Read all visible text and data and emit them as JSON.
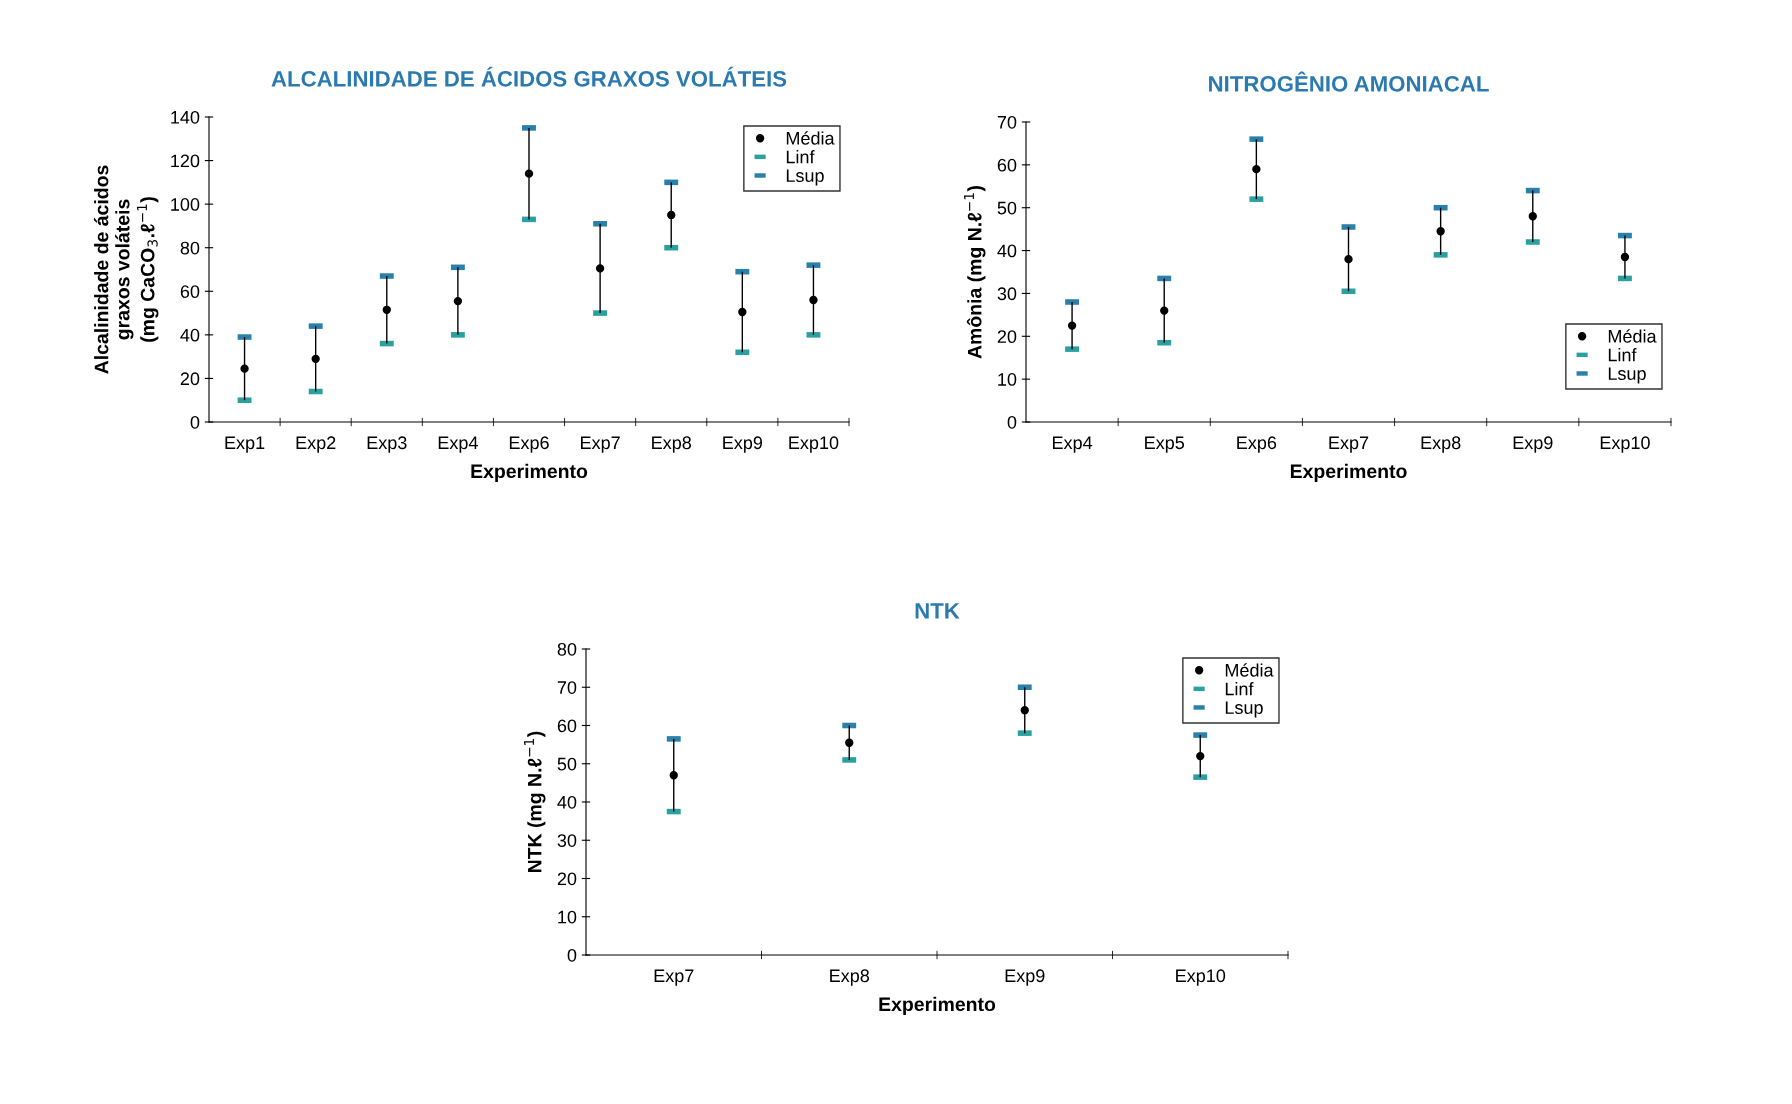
{
  "chart_data": [
    {
      "type": "scatter",
      "title": "ALCALINIDADE DE ÁCIDOS GRAXOS VOLÁTEIS",
      "xlabel": "Experimento",
      "ylabel": "Alcalinidade de ácidos\ngraxos voláteis\n(mg CaCO$_{3}$.ℓ$^{−1}$)",
      "categories": [
        "Exp1",
        "Exp2",
        "Exp3",
        "Exp4",
        "Exp6",
        "Exp7",
        "Exp8",
        "Exp9",
        "Exp10"
      ],
      "ylim": [
        0,
        140
      ],
      "yticks": [
        0,
        20,
        40,
        60,
        80,
        100,
        120,
        140
      ],
      "grid": false,
      "legend": "top right",
      "series": [
        {
          "name": "Média",
          "color": "#000000",
          "marker": "circle",
          "values": [
            24.5,
            29,
            51.5,
            55.5,
            114,
            70.5,
            95,
            50.5,
            56
          ],
          "errors": [
            [
              14.5,
              14.5
            ],
            [
              15,
              15
            ],
            [
              15.5,
              15.5
            ],
            [
              15.5,
              15.5
            ],
            [
              21,
              21
            ],
            [
              20.5,
              20.5
            ],
            [
              15,
              15
            ],
            [
              18.5,
              18.5
            ],
            [
              16,
              16
            ]
          ]
        },
        {
          "name": "Linf",
          "color": "#2aa0a0",
          "values": [
            10,
            14,
            36,
            40,
            93,
            50,
            80,
            32,
            40
          ]
        },
        {
          "name": "Lsup",
          "color": "#2a80a8",
          "values": [
            39,
            44,
            67,
            71,
            135,
            91,
            110,
            69,
            72
          ]
        }
      ]
    },
    {
      "type": "scatter",
      "title": "NITROGÊNIO AMONIACAL",
      "xlabel": "Experimento",
      "ylabel": "Amônia (mg N.ℓ$^{−1}$)",
      "categories": [
        "Exp4",
        "Exp5",
        "Exp6",
        "Exp7",
        "Exp8",
        "Exp9",
        "Exp10"
      ],
      "ylim": [
        0,
        70
      ],
      "yticks": [
        0,
        10,
        20,
        30,
        40,
        50,
        60,
        70
      ],
      "grid": false,
      "legend": "bottom right",
      "series": [
        {
          "name": "Média",
          "color": "#000000",
          "marker": "circle",
          "values": [
            22.5,
            26,
            59,
            38,
            44.5,
            48,
            38.5
          ],
          "errors": [
            [
              5.5,
              5.5
            ],
            [
              7.5,
              7.5
            ],
            [
              7,
              7
            ],
            [
              7.5,
              7.5
            ],
            [
              5.5,
              5.5
            ],
            [
              6,
              6
            ],
            [
              5,
              5
            ]
          ]
        },
        {
          "name": "Linf",
          "color": "#2aa0a0",
          "values": [
            17,
            18.5,
            52,
            30.5,
            39,
            42,
            33.5
          ]
        },
        {
          "name": "Lsup",
          "color": "#2a80a8",
          "values": [
            28,
            33.5,
            66,
            45.5,
            50,
            54,
            43.5
          ]
        }
      ]
    },
    {
      "type": "scatter",
      "title": "NTK",
      "xlabel": "Experimento",
      "ylabel": "NTK (mg N.ℓ$^{−1}$)",
      "categories": [
        "Exp7",
        "Exp8",
        "Exp9",
        "Exp10"
      ],
      "ylim": [
        0,
        80
      ],
      "yticks": [
        0,
        10,
        20,
        30,
        40,
        50,
        60,
        70,
        80
      ],
      "grid": false,
      "legend": "top right",
      "series": [
        {
          "name": "Média",
          "color": "#000000",
          "marker": "circle",
          "values": [
            47,
            55.5,
            64,
            52
          ],
          "errors": [
            [
              9.5,
              9.5
            ],
            [
              4.5,
              4.5
            ],
            [
              6,
              6
            ],
            [
              5.5,
              5.5
            ]
          ]
        },
        {
          "name": "Linf",
          "color": "#2aa0a0",
          "values": [
            37.5,
            51,
            58,
            46.5
          ]
        },
        {
          "name": "Lsup",
          "color": "#2a80a8",
          "values": [
            56.5,
            60,
            70,
            57.5
          ]
        }
      ]
    }
  ]
}
